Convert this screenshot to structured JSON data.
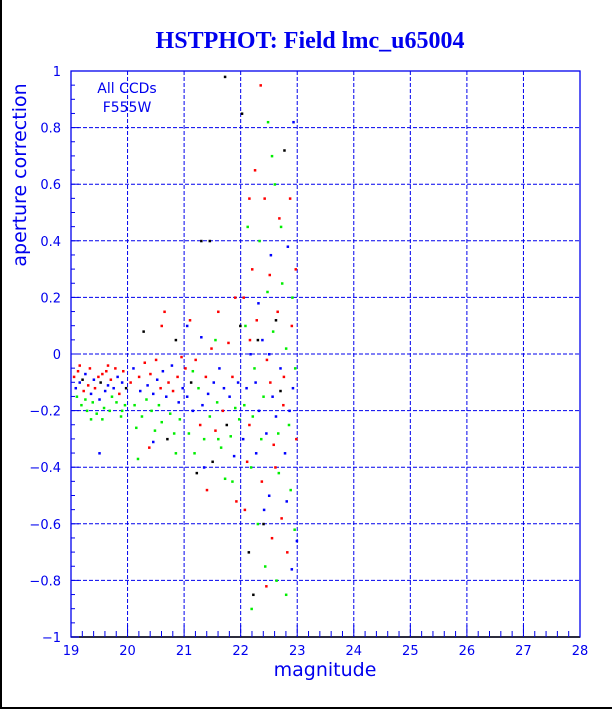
{
  "chart_data": {
    "type": "scatter",
    "title": "HSTPHOT: Field lmc_u65004",
    "xlabel": "magnitude",
    "ylabel": "aperture correction",
    "xlim": [
      19,
      28
    ],
    "ylim": [
      -1,
      1
    ],
    "xticks": [
      "19",
      "20",
      "21",
      "22",
      "23",
      "24",
      "25",
      "26",
      "27",
      "28"
    ],
    "yticks": [
      "-1",
      "-0.8",
      "-0.6",
      "-0.4",
      "-0.2",
      "0",
      "0.2",
      "0.4",
      "0.6",
      "0.8",
      "1"
    ],
    "grid": true,
    "annotation": [
      "All CCDs",
      "F555W"
    ],
    "colors": {
      "r": "#ff0000",
      "g": "#00ee00",
      "b": "#0000ff",
      "k": "#000000"
    },
    "points": [
      [
        19.05,
        -0.08,
        "r"
      ],
      [
        19.08,
        -0.12,
        "b"
      ],
      [
        19.1,
        -0.15,
        "g"
      ],
      [
        19.12,
        -0.06,
        "r"
      ],
      [
        19.15,
        -0.1,
        "b"
      ],
      [
        19.18,
        -0.18,
        "g"
      ],
      [
        19.2,
        -0.09,
        "k"
      ],
      [
        19.22,
        -0.13,
        "r"
      ],
      [
        19.25,
        -0.07,
        "b"
      ],
      [
        19.28,
        -0.2,
        "g"
      ],
      [
        19.3,
        -0.11,
        "r"
      ],
      [
        19.33,
        -0.05,
        "r"
      ],
      [
        19.35,
        -0.14,
        "b"
      ],
      [
        19.38,
        -0.17,
        "g"
      ],
      [
        19.4,
        -0.09,
        "b"
      ],
      [
        19.42,
        -0.12,
        "r"
      ],
      [
        19.45,
        -0.21,
        "g"
      ],
      [
        19.48,
        -0.08,
        "r"
      ],
      [
        19.5,
        -0.16,
        "b"
      ],
      [
        19.52,
        -0.1,
        "k"
      ],
      [
        19.55,
        -0.07,
        "r"
      ],
      [
        19.58,
        -0.19,
        "g"
      ],
      [
        19.6,
        -0.13,
        "b"
      ],
      [
        19.62,
        -0.06,
        "r"
      ],
      [
        19.65,
        -0.11,
        "b"
      ],
      [
        19.68,
        -0.2,
        "g"
      ],
      [
        19.7,
        -0.09,
        "r"
      ],
      [
        19.72,
        -0.15,
        "g"
      ],
      [
        19.75,
        -0.12,
        "b"
      ],
      [
        19.78,
        -0.05,
        "r"
      ],
      [
        19.8,
        -0.17,
        "g"
      ],
      [
        19.82,
        -0.08,
        "b"
      ],
      [
        19.85,
        -0.14,
        "r"
      ],
      [
        19.88,
        -0.22,
        "g"
      ],
      [
        19.9,
        -0.1,
        "b"
      ],
      [
        19.92,
        -0.06,
        "r"
      ],
      [
        19.95,
        -0.18,
        "g"
      ],
      [
        19.97,
        -0.12,
        "k"
      ],
      [
        19.5,
        -0.35,
        "b"
      ],
      [
        19.35,
        -0.23,
        "g"
      ],
      [
        19.15,
        -0.04,
        "r"
      ],
      [
        19.65,
        -0.04,
        "r"
      ],
      [
        19.25,
        -0.16,
        "g"
      ],
      [
        19.55,
        -0.23,
        "g"
      ],
      [
        19.9,
        -0.2,
        "g"
      ],
      [
        20.05,
        -0.1,
        "r"
      ],
      [
        20.1,
        -0.05,
        "b"
      ],
      [
        20.12,
        -0.18,
        "g"
      ],
      [
        20.15,
        -0.26,
        "g"
      ],
      [
        20.2,
        -0.08,
        "r"
      ],
      [
        20.22,
        -0.13,
        "b"
      ],
      [
        20.25,
        -0.22,
        "g"
      ],
      [
        20.28,
        0.08,
        "k"
      ],
      [
        20.3,
        -0.03,
        "r"
      ],
      [
        20.33,
        -0.16,
        "g"
      ],
      [
        20.35,
        -0.11,
        "b"
      ],
      [
        20.38,
        -0.33,
        "r"
      ],
      [
        20.4,
        -0.07,
        "r"
      ],
      [
        20.42,
        -0.2,
        "g"
      ],
      [
        20.45,
        -0.14,
        "b"
      ],
      [
        20.48,
        -0.27,
        "g"
      ],
      [
        20.5,
        -0.02,
        "r"
      ],
      [
        20.52,
        -0.09,
        "b"
      ],
      [
        20.55,
        -0.18,
        "g"
      ],
      [
        20.58,
        -0.12,
        "r"
      ],
      [
        20.6,
        -0.24,
        "g"
      ],
      [
        20.62,
        -0.06,
        "b"
      ],
      [
        20.65,
        0.15,
        "r"
      ],
      [
        20.68,
        -0.15,
        "b"
      ],
      [
        20.7,
        -0.3,
        "k"
      ],
      [
        20.72,
        -0.1,
        "r"
      ],
      [
        20.75,
        -0.21,
        "g"
      ],
      [
        20.78,
        -0.04,
        "b"
      ],
      [
        20.8,
        -0.13,
        "r"
      ],
      [
        20.82,
        -0.28,
        "g"
      ],
      [
        20.85,
        0.05,
        "k"
      ],
      [
        20.88,
        -0.08,
        "r"
      ],
      [
        20.9,
        -0.17,
        "b"
      ],
      [
        20.92,
        -0.23,
        "g"
      ],
      [
        20.95,
        -0.01,
        "r"
      ],
      [
        20.97,
        -0.12,
        "b"
      ],
      [
        20.18,
        -0.37,
        "g"
      ],
      [
        20.6,
        0.1,
        "r"
      ],
      [
        20.45,
        -0.31,
        "b"
      ],
      [
        20.85,
        -0.35,
        "g"
      ],
      [
        21.02,
        -0.05,
        "r"
      ],
      [
        21.05,
        -0.15,
        "b"
      ],
      [
        21.08,
        -0.28,
        "g"
      ],
      [
        21.1,
        0.12,
        "r"
      ],
      [
        21.12,
        -0.1,
        "k"
      ],
      [
        21.15,
        -0.2,
        "b"
      ],
      [
        21.18,
        -0.35,
        "g"
      ],
      [
        21.2,
        -0.02,
        "r"
      ],
      [
        21.22,
        -0.42,
        "k"
      ],
      [
        21.25,
        -0.12,
        "g"
      ],
      [
        21.28,
        -0.25,
        "r"
      ],
      [
        21.3,
        0.06,
        "b"
      ],
      [
        21.32,
        -0.18,
        "b"
      ],
      [
        21.35,
        -0.3,
        "g"
      ],
      [
        21.38,
        -0.08,
        "r"
      ],
      [
        21.4,
        -0.48,
        "r"
      ],
      [
        21.42,
        -0.14,
        "b"
      ],
      [
        21.45,
        -0.22,
        "g"
      ],
      [
        21.48,
        0.02,
        "r"
      ],
      [
        21.5,
        -0.38,
        "k"
      ],
      [
        21.52,
        -0.1,
        "b"
      ],
      [
        21.55,
        -0.27,
        "r"
      ],
      [
        21.58,
        -0.17,
        "g"
      ],
      [
        21.6,
        0.15,
        "r"
      ],
      [
        21.62,
        -0.05,
        "b"
      ],
      [
        21.65,
        -0.33,
        "g"
      ],
      [
        21.68,
        -0.2,
        "r"
      ],
      [
        21.7,
        -0.12,
        "b"
      ],
      [
        21.72,
        -0.44,
        "g"
      ],
      [
        21.75,
        -0.25,
        "k"
      ],
      [
        21.78,
        0.04,
        "r"
      ],
      [
        21.8,
        -0.15,
        "b"
      ],
      [
        21.82,
        -0.29,
        "g"
      ],
      [
        21.85,
        -0.08,
        "r"
      ],
      [
        21.88,
        -0.36,
        "b"
      ],
      [
        21.9,
        -0.19,
        "g"
      ],
      [
        21.92,
        -0.52,
        "r"
      ],
      [
        21.95,
        -0.1,
        "b"
      ],
      [
        21.97,
        -0.23,
        "g"
      ],
      [
        21.99,
        0.1,
        "k"
      ],
      [
        21.3,
        0.4,
        "k"
      ],
      [
        21.45,
        0.4,
        "k"
      ],
      [
        21.72,
        0.98,
        "k"
      ],
      [
        21.9,
        0.2,
        "r"
      ],
      [
        21.6,
        -0.3,
        "g"
      ],
      [
        21.15,
        -0.06,
        "g"
      ],
      [
        21.35,
        -0.4,
        "b"
      ],
      [
        21.85,
        -0.45,
        "g"
      ],
      [
        21.05,
        0.1,
        "b"
      ],
      [
        21.55,
        0.05,
        "g"
      ],
      [
        22.02,
        0.85,
        "k"
      ],
      [
        22.04,
        -0.3,
        "b"
      ],
      [
        22.05,
        0.2,
        "r"
      ],
      [
        22.07,
        -0.55,
        "r"
      ],
      [
        22.08,
        0.1,
        "g"
      ],
      [
        22.1,
        -0.12,
        "b"
      ],
      [
        22.12,
        0.45,
        "g"
      ],
      [
        22.14,
        -0.7,
        "k"
      ],
      [
        22.15,
        -0.25,
        "r"
      ],
      [
        22.17,
        0.0,
        "b"
      ],
      [
        22.18,
        -0.4,
        "g"
      ],
      [
        22.2,
        0.3,
        "r"
      ],
      [
        22.22,
        -0.85,
        "k"
      ],
      [
        22.24,
        -0.05,
        "g"
      ],
      [
        22.25,
        0.65,
        "r"
      ],
      [
        22.27,
        -0.35,
        "b"
      ],
      [
        22.28,
        0.12,
        "r"
      ],
      [
        22.3,
        -0.6,
        "g"
      ],
      [
        22.32,
        -0.2,
        "b"
      ],
      [
        22.33,
        0.4,
        "g"
      ],
      [
        22.35,
        0.95,
        "r"
      ],
      [
        22.37,
        -0.45,
        "r"
      ],
      [
        22.38,
        0.05,
        "b"
      ],
      [
        22.4,
        -0.15,
        "g"
      ],
      [
        22.42,
        0.55,
        "r"
      ],
      [
        22.43,
        -0.75,
        "g"
      ],
      [
        22.45,
        -0.28,
        "b"
      ],
      [
        22.47,
        0.22,
        "g"
      ],
      [
        22.48,
        0.82,
        "g"
      ],
      [
        22.5,
        -0.5,
        "b"
      ],
      [
        22.52,
        -0.1,
        "r"
      ],
      [
        22.53,
        0.35,
        "b"
      ],
      [
        22.55,
        -0.65,
        "r"
      ],
      [
        22.57,
        0.08,
        "g"
      ],
      [
        22.58,
        -0.32,
        "r"
      ],
      [
        22.6,
        0.6,
        "g"
      ],
      [
        22.62,
        -0.22,
        "b"
      ],
      [
        22.63,
        -0.8,
        "g"
      ],
      [
        22.65,
        0.15,
        "r"
      ],
      [
        22.67,
        -0.42,
        "g"
      ],
      [
        22.68,
        0.48,
        "r"
      ],
      [
        22.7,
        -0.05,
        "b"
      ],
      [
        22.72,
        -0.58,
        "r"
      ],
      [
        22.73,
        0.25,
        "g"
      ],
      [
        22.75,
        -0.18,
        "r"
      ],
      [
        22.77,
        0.72,
        "k"
      ],
      [
        22.78,
        -0.35,
        "b"
      ],
      [
        22.8,
        0.02,
        "g"
      ],
      [
        22.82,
        -0.7,
        "r"
      ],
      [
        22.83,
        0.38,
        "b"
      ],
      [
        22.85,
        -0.25,
        "g"
      ],
      [
        22.87,
        0.55,
        "r"
      ],
      [
        22.88,
        -0.48,
        "g"
      ],
      [
        22.9,
        0.1,
        "r"
      ],
      [
        22.92,
        -0.12,
        "b"
      ],
      [
        22.93,
        0.82,
        "b"
      ],
      [
        22.95,
        -0.62,
        "g"
      ],
      [
        22.97,
        0.3,
        "r"
      ],
      [
        22.98,
        -0.3,
        "r"
      ],
      [
        22.99,
        -0.66,
        "b"
      ],
      [
        22.06,
        -0.18,
        "g"
      ],
      [
        22.16,
        0.05,
        "r"
      ],
      [
        22.26,
        -0.1,
        "b"
      ],
      [
        22.36,
        -0.3,
        "g"
      ],
      [
        22.46,
        -0.02,
        "r"
      ],
      [
        22.56,
        -0.15,
        "b"
      ],
      [
        22.66,
        -0.28,
        "g"
      ],
      [
        22.76,
        -0.08,
        "r"
      ],
      [
        22.86,
        -0.2,
        "b"
      ],
      [
        22.96,
        -0.05,
        "g"
      ],
      [
        22.11,
        -0.38,
        "r"
      ],
      [
        22.21,
        -0.22,
        "g"
      ],
      [
        22.31,
        0.18,
        "b"
      ],
      [
        22.41,
        -0.55,
        "b"
      ],
      [
        22.51,
        0.28,
        "r"
      ],
      [
        22.61,
        -0.4,
        "r"
      ],
      [
        22.71,
        0.45,
        "g"
      ],
      [
        22.81,
        -0.52,
        "b"
      ],
      [
        22.91,
        0.2,
        "g"
      ],
      [
        22.19,
        -0.9,
        "g"
      ],
      [
        22.45,
        -0.82,
        "r"
      ],
      [
        22.55,
        0.7,
        "g"
      ],
      [
        22.8,
        -0.85,
        "g"
      ],
      [
        22.9,
        -0.76,
        "b"
      ],
      [
        22.3,
        0.05,
        "k"
      ],
      [
        22.62,
        0.12,
        "k"
      ],
      [
        22.4,
        -0.6,
        "k"
      ],
      [
        22.7,
        -0.13,
        "k"
      ],
      [
        22.5,
        0.0,
        "b"
      ],
      [
        22.15,
        0.55,
        "r"
      ]
    ]
  }
}
